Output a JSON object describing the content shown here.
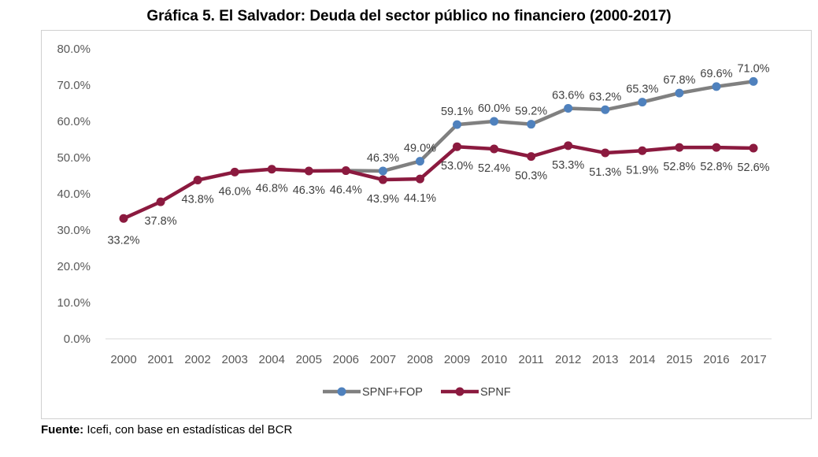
{
  "chart_data": {
    "type": "line",
    "title": "Gráfica 5. El Salvador: Deuda del sector público no financiero (2000-2017)",
    "categories": [
      "2000",
      "2001",
      "2002",
      "2003",
      "2004",
      "2005",
      "2006",
      "2007",
      "2008",
      "2009",
      "2010",
      "2011",
      "2012",
      "2013",
      "2014",
      "2015",
      "2016",
      "2017"
    ],
    "ylim": [
      0,
      80
    ],
    "yticks": [
      "0.0%",
      "10.0%",
      "20.0%",
      "30.0%",
      "40.0%",
      "50.0%",
      "60.0%",
      "70.0%",
      "80.0%"
    ],
    "grid": false,
    "legend_placement": "bottom",
    "series": [
      {
        "name": "SPNF+FOP",
        "line_color": "#808080",
        "marker_color": "#4f81bd",
        "values": [
          null,
          null,
          null,
          null,
          null,
          null,
          46.4,
          46.3,
          49.0,
          59.1,
          60.0,
          59.2,
          63.6,
          63.2,
          65.3,
          67.8,
          69.6,
          71.0
        ],
        "labels": [
          null,
          null,
          null,
          null,
          null,
          null,
          null,
          "46.3%",
          "49.0%",
          "59.1%",
          "60.0%",
          "59.2%",
          "63.6%",
          "63.2%",
          "65.3%",
          "67.8%",
          "69.6%",
          "71.0%"
        ]
      },
      {
        "name": "SPNF",
        "line_color": "#8b1a3f",
        "marker_color": "#8b1a3f",
        "values": [
          33.2,
          37.8,
          43.8,
          46.0,
          46.8,
          46.3,
          46.4,
          43.9,
          44.1,
          53.0,
          52.4,
          50.3,
          53.3,
          51.3,
          51.9,
          52.8,
          52.8,
          52.6
        ],
        "labels": [
          "33.2%",
          "37.8%",
          "43.8%",
          "46.0%",
          "46.8%",
          "46.3%",
          "46.4%",
          "43.9%",
          "44.1%",
          "53.0%",
          "52.4%",
          "50.3%",
          "53.3%",
          "51.3%",
          "51.9%",
          "52.8%",
          "52.8%",
          "52.6%"
        ]
      }
    ]
  },
  "source": {
    "label": "Fuente:",
    "text": " Icefi, con base en estadísticas del BCR"
  }
}
